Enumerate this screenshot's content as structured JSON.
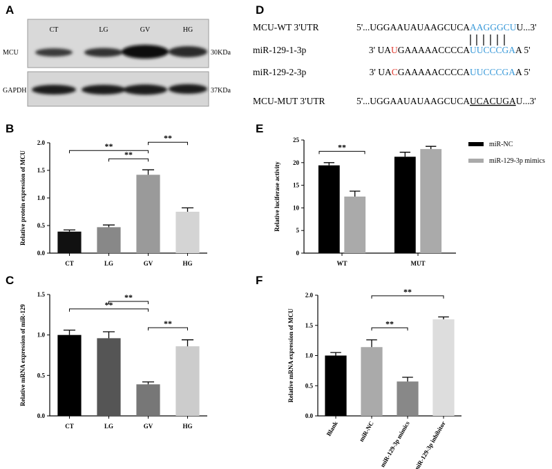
{
  "blot": {
    "panel": "A",
    "lanes": [
      "CT",
      "LG",
      "GV",
      "HG"
    ],
    "rows": [
      {
        "protein": "MCU",
        "size": "30KDa"
      },
      {
        "protein": "GAPDH",
        "size": "37KDa"
      }
    ]
  },
  "sequences": {
    "panel": "D",
    "rows": [
      {
        "name": "MCU-WT 3'UTR",
        "segments": [
          {
            "text": "5'...UGGAAUAUAAGCUCA"
          },
          {
            "text": "AAGGGCU",
            "color": "#3a9ad9"
          },
          {
            "text": "U...3'"
          }
        ]
      },
      {
        "name": "miR-129-1-3p",
        "segments": [
          {
            "text": "3' UA"
          },
          {
            "text": "U",
            "color": "#e03a2f"
          },
          {
            "text": "GAAAAACCCCA"
          },
          {
            "text": "UUCCCGA",
            "color": "#3a9ad9"
          },
          {
            "text": "A  5'"
          }
        ]
      },
      {
        "name": "miR-129-2-3p",
        "segments": [
          {
            "text": "3' UA"
          },
          {
            "text": "C",
            "color": "#e03a2f"
          },
          {
            "text": "GAAAAACCCCA"
          },
          {
            "text": "UUCCCGA",
            "color": "#3a9ad9"
          },
          {
            "text": "A  5'"
          }
        ]
      },
      {
        "name": "MCU-MUT 3'UTR",
        "segments": [
          {
            "text": "5'...UGGAAUAUAAGCUCA"
          },
          {
            "text": "UCACUGA",
            "underline": true
          },
          {
            "text": "U...3'"
          }
        ]
      }
    ]
  },
  "chart_data": [
    {
      "type": "bar",
      "panel": "B",
      "ylabel": "Relative protein expression of MCU",
      "categories": [
        "CT",
        "LG",
        "GV",
        "HG"
      ],
      "values": [
        0.39,
        0.47,
        1.42,
        0.75
      ],
      "errors": [
        0.03,
        0.04,
        0.09,
        0.07
      ],
      "colors": [
        "#111111",
        "#888888",
        "#9a9a9a",
        "#d4d4d4"
      ],
      "ylim": [
        0,
        2
      ],
      "yticks": [
        {
          "value": 0,
          "label": "0.0"
        },
        {
          "value": 0.5,
          "label": "0.5"
        },
        {
          "value": 1,
          "label": "1.0"
        },
        {
          "value": 1.5,
          "label": "1.5"
        },
        {
          "value": 2,
          "label": "2.0"
        }
      ],
      "annotations": [
        {
          "from": 1,
          "to": 2,
          "label": "**"
        },
        {
          "from": 0,
          "to": 2,
          "label": "**"
        },
        {
          "from": 2,
          "to": 3,
          "label": "**"
        }
      ]
    },
    {
      "type": "bar",
      "panel": "C",
      "ylabel": "Relative mRNA expression of miR-129",
      "categories": [
        "CT",
        "LG",
        "GV",
        "HG"
      ],
      "values": [
        1.0,
        0.96,
        0.39,
        0.86
      ],
      "errors": [
        0.06,
        0.08,
        0.03,
        0.08
      ],
      "colors": [
        "#000000",
        "#555555",
        "#777777",
        "#cccccc"
      ],
      "ylim": [
        0,
        1.5
      ],
      "yticks": [
        {
          "value": 0,
          "label": "0.0"
        },
        {
          "value": 0.5,
          "label": "0.5"
        },
        {
          "value": 1,
          "label": "1.0"
        },
        {
          "value": 1.5,
          "label": "1.5"
        }
      ],
      "annotations": [
        {
          "from": 2,
          "to": 3,
          "label": "**"
        },
        {
          "from": 0,
          "to": 2,
          "label": "**"
        },
        {
          "from": 1,
          "to": 2,
          "label": "**"
        }
      ]
    },
    {
      "type": "grouped-bar",
      "panel": "E",
      "ylabel": "Relative luciferase activity",
      "categories": [
        "WT",
        "MUT"
      ],
      "series": [
        {
          "name": "miR-NC",
          "color": "#000000",
          "values": [
            19.4,
            21.3
          ],
          "errors": [
            0.6,
            1.0
          ]
        },
        {
          "name": "miR-129-3p mimics",
          "color": "#aaaaaa",
          "values": [
            12.5,
            23.0
          ],
          "errors": [
            1.2,
            0.6
          ]
        }
      ],
      "ylim": [
        0,
        25
      ],
      "yticks": [
        0,
        5,
        10,
        15,
        20,
        25
      ],
      "legend": "right",
      "annotations": [
        {
          "category": 0,
          "label": "**"
        }
      ]
    },
    {
      "type": "bar",
      "panel": "F",
      "ylabel": "Relative mRNA expression of MCU",
      "categories": [
        "Blank",
        "miR-NC",
        "miR-129-3p mimics",
        "miR-129-3p inhibitor"
      ],
      "values": [
        1.0,
        1.14,
        0.57,
        1.6
      ],
      "errors": [
        0.05,
        0.12,
        0.07,
        0.04
      ],
      "colors": [
        "#000000",
        "#aaaaaa",
        "#888888",
        "#dddddd"
      ],
      "ylim": [
        0,
        2
      ],
      "yticks": [
        {
          "value": 0,
          "label": "0.0"
        },
        {
          "value": 0.5,
          "label": "0.5"
        },
        {
          "value": 1,
          "label": "1.0"
        },
        {
          "value": 1.5,
          "label": "1.5"
        },
        {
          "value": 2,
          "label": "2.0"
        }
      ],
      "annotations": [
        {
          "from": 1,
          "to": 2,
          "label": "**"
        },
        {
          "from": 1,
          "to": 3,
          "label": "**"
        }
      ]
    }
  ]
}
